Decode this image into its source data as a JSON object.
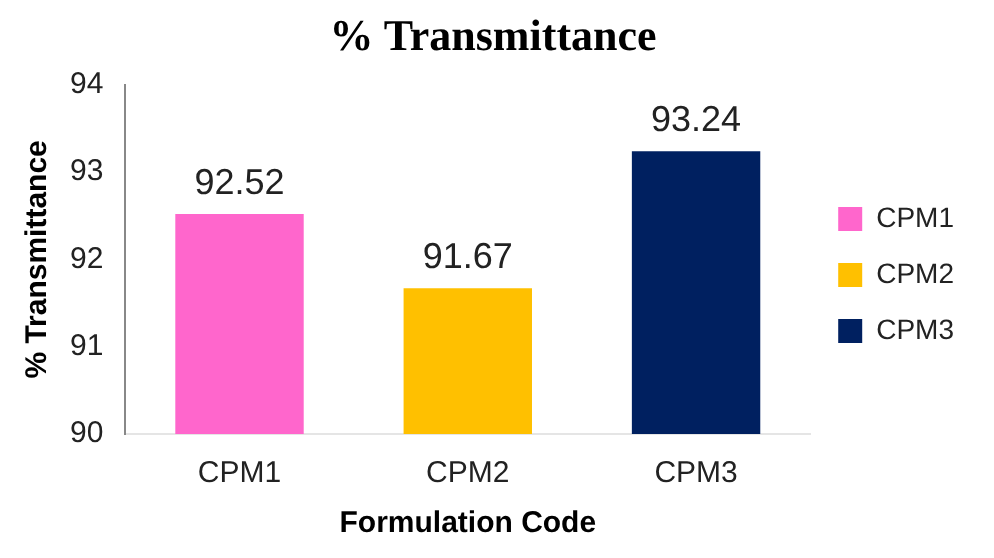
{
  "chart_data": {
    "type": "bar",
    "title": "% Transmittance",
    "xlabel": "Formulation Code",
    "ylabel": "% Transmittance",
    "categories": [
      "CPM1",
      "CPM2",
      "CPM3"
    ],
    "series": [
      {
        "name": "CPM1",
        "color": "#ff66cc",
        "values": [
          92.52,
          null,
          null
        ]
      },
      {
        "name": "CPM2",
        "color": "#ffc000",
        "values": [
          null,
          91.67,
          null
        ]
      },
      {
        "name": "CPM3",
        "color": "#002060",
        "values": [
          null,
          null,
          93.24
        ]
      }
    ],
    "ylim": [
      90,
      94
    ],
    "yticks": [
      90,
      91,
      92,
      93,
      94
    ],
    "grid": false,
    "legend": "right",
    "data_labels": true
  }
}
